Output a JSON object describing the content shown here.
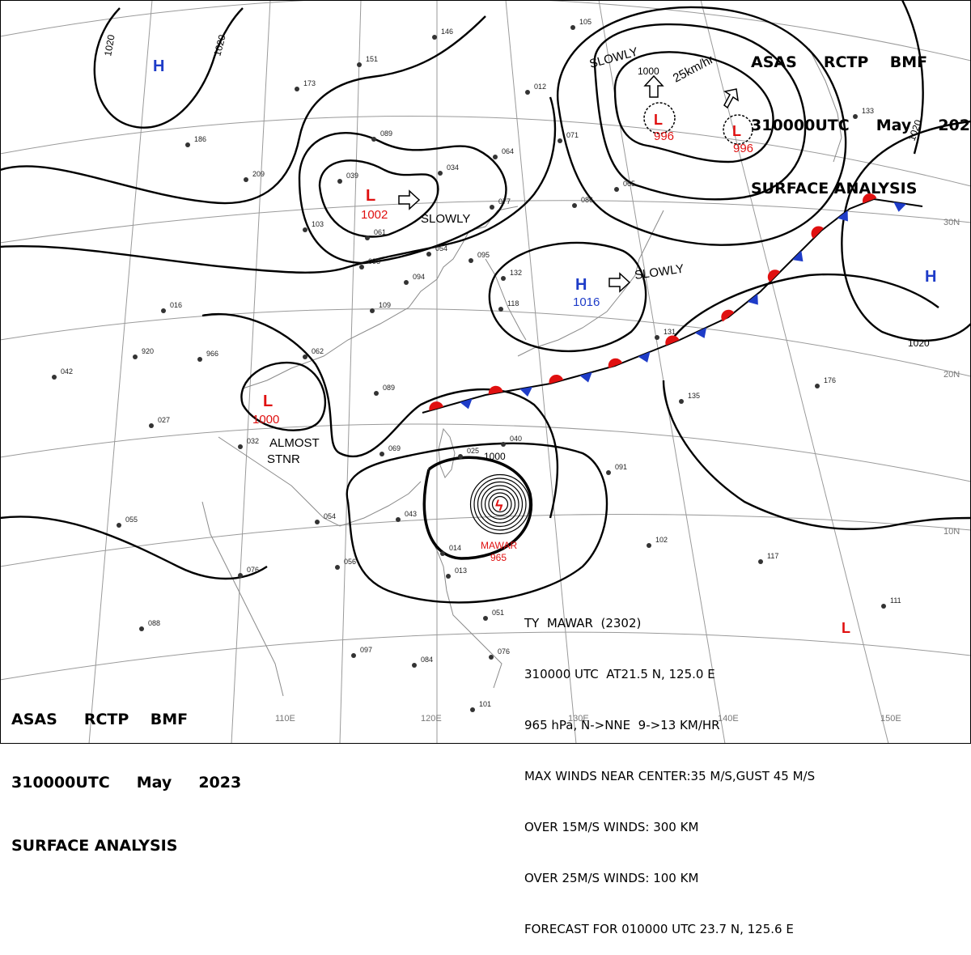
{
  "header": {
    "line1": "ASAS     RCTP    BMF",
    "line2": "310000UTC     May     2023",
    "line3": "SURFACE ANALYSIS"
  },
  "lon_labels": [
    "110E",
    "120E",
    "130E",
    "140E",
    "150E"
  ],
  "lat_labels": [
    "30N",
    "20N",
    "10N"
  ],
  "isobar_labels": [
    "1020",
    "1020",
    "1020",
    "1020",
    "1000",
    "1000"
  ],
  "pressure_centers": [
    {
      "type": "H",
      "value": "",
      "color": "#1e3cc8"
    },
    {
      "type": "L",
      "value": "1002",
      "color": "#e01010",
      "motion": "SLOWLY"
    },
    {
      "type": "L",
      "value": "996",
      "color": "#e01010"
    },
    {
      "type": "L",
      "value": "996",
      "color": "#e01010"
    },
    {
      "type": "H",
      "value": "1016",
      "color": "#1e3cc8",
      "motion": "SLOWLY"
    },
    {
      "type": "L",
      "value": "1000",
      "color": "#e01010"
    },
    {
      "type": "H",
      "value": "",
      "color": "#1e3cc8"
    },
    {
      "type": "L",
      "value": "",
      "color": "#e01010"
    }
  ],
  "annotations": {
    "slowly_ne": "SLOWLY",
    "speed_ne": "25km/hr",
    "almost": "ALMOST",
    "stnr": "STNR"
  },
  "typhoon": {
    "name": "MAWAR",
    "pressure": "965",
    "line1": "TY  MAWAR  (2302)",
    "line2": "310000 UTC  AT21.5 N, 125.0 E",
    "line3": "965 hPa, N->NNE  9->13 KM/HR",
    "line4": "MAX WINDS NEAR CENTER:35 M/S,GUST 45 M/S",
    "line5": "OVER 15M/S WINDS: 300 KM",
    "line6": "OVER 25M/S WINDS: 100 KM",
    "line7": "FORECAST FOR 010000 UTC 23.7 N, 125.6 E"
  },
  "station_values": [
    "146",
    "151",
    "173",
    "105",
    "209",
    "186",
    "103",
    "039",
    "061",
    "098",
    "034",
    "064",
    "077",
    "054",
    "095",
    "094",
    "071",
    "065",
    "086",
    "012",
    "016",
    "132",
    "118",
    "920",
    "966",
    "062",
    "109",
    "089",
    "069",
    "042",
    "027",
    "032",
    "040",
    "043",
    "025",
    "055",
    "054",
    "014",
    "013",
    "056",
    "076",
    "088",
    "097",
    "084",
    "051",
    "076",
    "101",
    "091",
    "102",
    "131",
    "135",
    "176",
    "117",
    "111",
    "089",
    "133"
  ],
  "colors": {
    "low": "#e01010",
    "high": "#1e3cc8",
    "front_warm": "#e01010",
    "front_cold": "#1e3cc8",
    "coast": "#8a8a8a",
    "grid": "#9a9a9a"
  }
}
